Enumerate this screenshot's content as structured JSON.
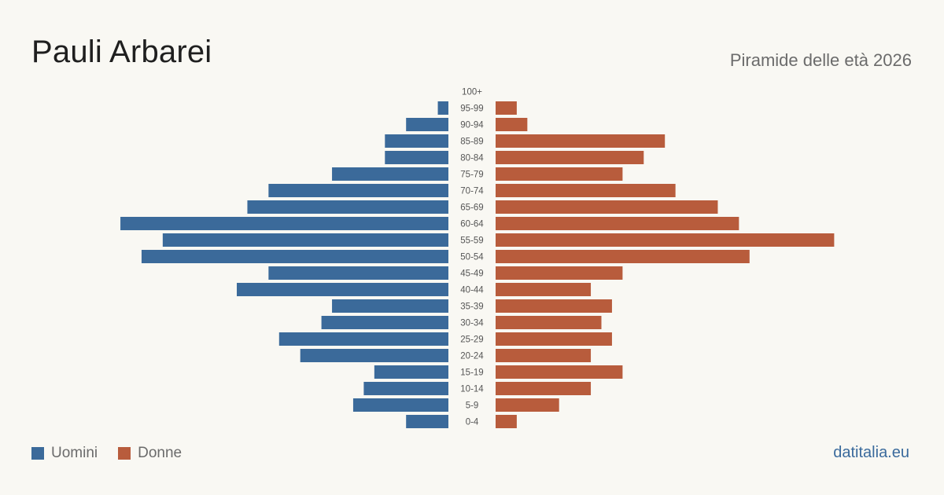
{
  "header": {
    "title": "Pauli Arbarei",
    "subtitle": "Piramide delle età 2026"
  },
  "legend": {
    "men_label": "Uomini",
    "women_label": "Donne"
  },
  "footer": {
    "source": "datitalia.eu"
  },
  "colors": {
    "men": "#3b6a9a",
    "women": "#b85c3c",
    "background": "#f9f8f3"
  },
  "chart_data": {
    "type": "bar",
    "orientation": "horizontal-pyramid",
    "title": "Piramide delle età 2026",
    "categories": [
      "100+",
      "95-99",
      "90-94",
      "85-89",
      "80-84",
      "75-79",
      "70-74",
      "65-69",
      "60-64",
      "55-59",
      "50-54",
      "45-49",
      "40-44",
      "35-39",
      "30-34",
      "25-29",
      "20-24",
      "15-19",
      "10-14",
      "5-9",
      "0-4"
    ],
    "series": [
      {
        "name": "Uomini",
        "values": [
          0,
          1,
          4,
          6,
          6,
          11,
          17,
          19,
          31,
          27,
          29,
          17,
          20,
          11,
          12,
          16,
          14,
          7,
          8,
          9,
          4
        ]
      },
      {
        "name": "Donne",
        "values": [
          0,
          2,
          3,
          16,
          14,
          12,
          17,
          21,
          23,
          32,
          24,
          12,
          9,
          11,
          10,
          11,
          9,
          12,
          9,
          6,
          2
        ]
      }
    ],
    "legend_position": "bottom-left",
    "grid": false
  }
}
